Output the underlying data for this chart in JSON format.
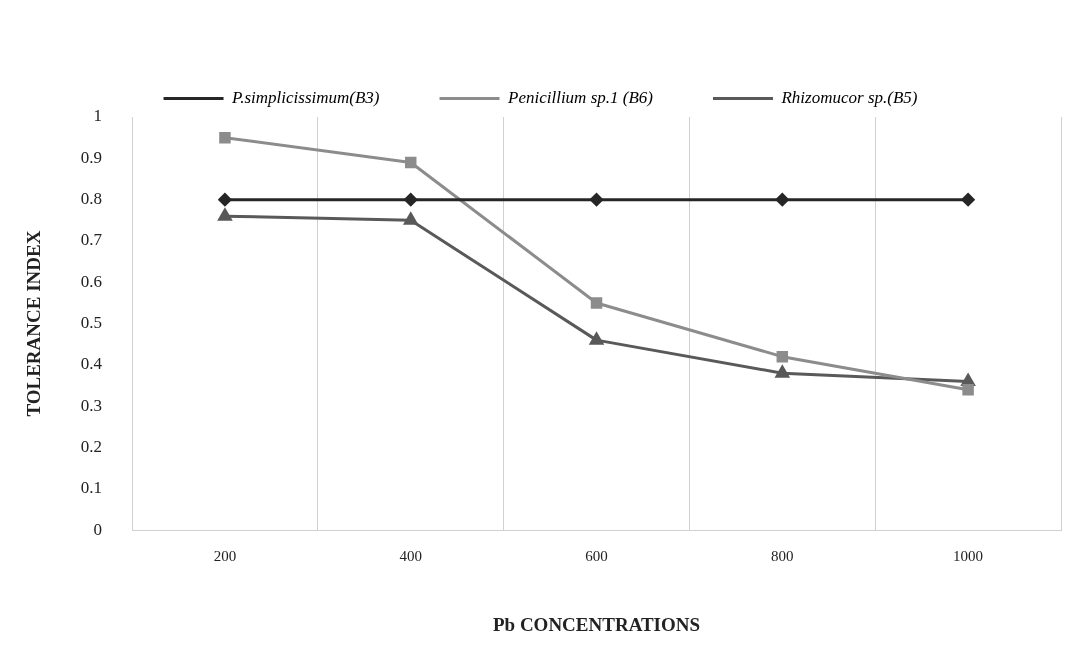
{
  "chart_data": {
    "type": "line",
    "xlabel": "Pb CONCENTRATIONS",
    "ylabel": "TOLERANCE INDEX",
    "categories": [
      "200",
      "400",
      "600",
      "800",
      "1000"
    ],
    "series": [
      {
        "name": "P.simplicissimum(B3)",
        "color": "#262626",
        "marker": "diamond",
        "values": [
          0.8,
          0.8,
          0.8,
          0.8,
          0.8
        ]
      },
      {
        "name": "Penicillium sp.1 (B6)",
        "color": "#8c8c8c",
        "marker": "square",
        "values": [
          0.95,
          0.89,
          0.55,
          0.42,
          0.34
        ]
      },
      {
        "name": "Rhizomucor sp.(B5)",
        "color": "#595959",
        "marker": "triangle",
        "values": [
          0.76,
          0.75,
          0.46,
          0.38,
          0.36
        ]
      }
    ],
    "ylim": [
      0,
      1
    ],
    "yticks": [
      0,
      0.1,
      0.2,
      0.3,
      0.4,
      0.5,
      0.6,
      0.7,
      0.8,
      0.9,
      1
    ],
    "grid": "x",
    "legend": "top"
  }
}
